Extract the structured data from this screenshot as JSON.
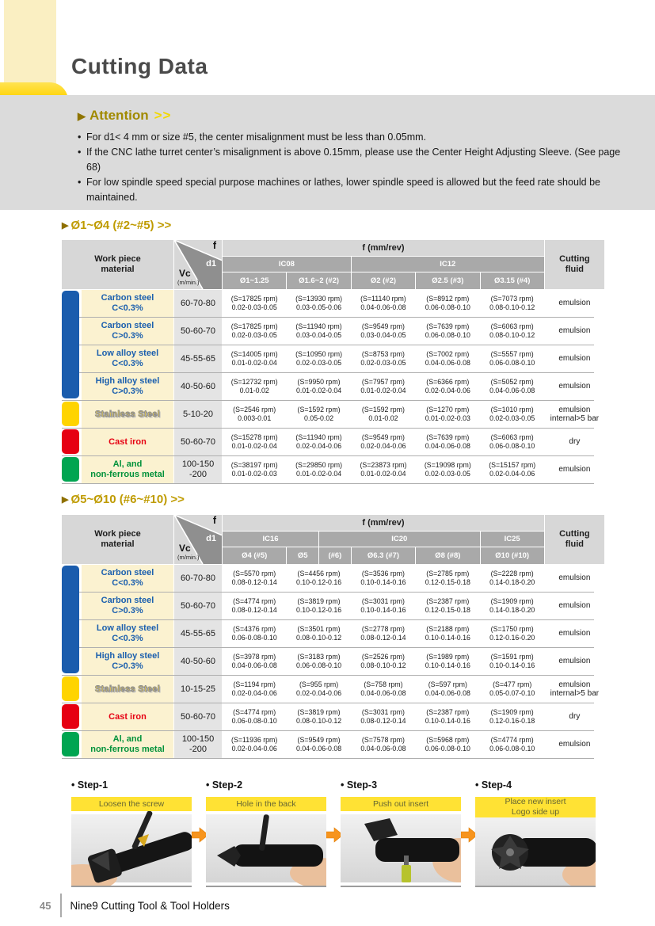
{
  "page": {
    "title": "Cutting Data",
    "footer": {
      "page_number": "45",
      "brand": "Nine9 Cutting Tool & Tool Holders"
    }
  },
  "attention": {
    "marker": "▶",
    "title": "Attention",
    "chevrons": ">>",
    "bullets": [
      "For d1< 4 mm or size #5, the center misalignment must be less than 0.05mm.",
      "If the CNC lathe turret center’s misalignment is above 0.15mm, please use the Center Height Adjusting Sleeve. (See page 68)",
      "For low spindle speed special purpose machines or lathes, lower spindle speed is allowed but the feed rate should be maintained."
    ]
  },
  "tables": [
    {
      "marker": "▶",
      "title": "Ø1~Ø4 (#2~#5) >>",
      "header": {
        "workpiece": [
          "Work piece",
          "material"
        ],
        "f": "f",
        "d1": "d1",
        "vc": "Vc",
        "vc_unit": "(m/min.)",
        "f_band": "f (mm/rev)",
        "groups": [
          "IC08",
          "IC12"
        ],
        "subcols": [
          "Ø1~1.25",
          "Ø1.6~2 (#2)",
          "Ø2 (#2)",
          "Ø2.5 (#3)",
          "Ø3.15 (#4)"
        ],
        "fluid": [
          "Cutting",
          "fluid"
        ]
      },
      "tab_groups": [
        {
          "color": "#1A5CAD",
          "from": 0,
          "to": 3
        },
        {
          "color": "#FFD400",
          "from": 4,
          "to": 4
        },
        {
          "color": "#E60012",
          "from": 5,
          "to": 5
        },
        {
          "color": "#00A551",
          "from": 6,
          "to": 6
        }
      ],
      "rows": [
        {
          "material": [
            "Carbon steel",
            "C<0.3%"
          ],
          "text_class": "blue",
          "vc": [
            "60-70-80"
          ],
          "cells": [
            {
              "rpm": "(S=17825 rpm)",
              "feed": "0.02-0.03-0.05"
            },
            {
              "rpm": "(S=13930 rpm)",
              "feed": "0.03-0.05-0.06"
            },
            {
              "rpm": "(S=11140 rpm)",
              "feed": "0.04-0.06-0.08"
            },
            {
              "rpm": "(S=8912 rpm)",
              "feed": "0.06-0.08-0.10"
            },
            {
              "rpm": "(S=7073 rpm)",
              "feed": "0.08-0.10-0.12"
            }
          ],
          "fluid": [
            "emulsion"
          ]
        },
        {
          "material": [
            "Carbon steel",
            "C>0.3%"
          ],
          "text_class": "blue",
          "vc": [
            "50-60-70"
          ],
          "cells": [
            {
              "rpm": "(S=17825 rpm)",
              "feed": "0.02-0.03-0.05"
            },
            {
              "rpm": "(S=11940 rpm)",
              "feed": "0.03-0.04-0.05"
            },
            {
              "rpm": "(S=9549 rpm)",
              "feed": "0.03-0.04-0.05"
            },
            {
              "rpm": "(S=7639 rpm)",
              "feed": "0.06-0.08-0.10"
            },
            {
              "rpm": "(S=6063 rpm)",
              "feed": "0.08-0.10-0.12"
            }
          ],
          "fluid": [
            "emulsion"
          ]
        },
        {
          "material": [
            "Low alloy steel",
            "C<0.3%"
          ],
          "text_class": "blue",
          "vc": [
            "45-55-65"
          ],
          "cells": [
            {
              "rpm": "(S=14005 rpm)",
              "feed": "0.01-0.02-0.04"
            },
            {
              "rpm": "(S=10950 rpm)",
              "feed": "0.02-0.03-0.05"
            },
            {
              "rpm": "(S=8753 rpm)",
              "feed": "0.02-0.03-0.05"
            },
            {
              "rpm": "(S=7002 rpm)",
              "feed": "0.04-0.06-0.08"
            },
            {
              "rpm": "(S=5557 rpm)",
              "feed": "0.06-0.08-0.10"
            }
          ],
          "fluid": [
            "emulsion"
          ]
        },
        {
          "material": [
            "High alloy steel",
            "C>0.3%"
          ],
          "text_class": "blue",
          "vc": [
            "40-50-60"
          ],
          "cells": [
            {
              "rpm": "(S=12732 rpm)",
              "feed": "0.01-0.02"
            },
            {
              "rpm": "(S=9950 rpm)",
              "feed": "0.01-0.02-0.04"
            },
            {
              "rpm": "(S=7957 rpm)",
              "feed": "0.01-0.02-0.04"
            },
            {
              "rpm": "(S=6366 rpm)",
              "feed": "0.02-0.04-0.06"
            },
            {
              "rpm": "(S=5052 rpm)",
              "feed": "0.04-0.06-0.08"
            }
          ],
          "fluid": [
            "emulsion"
          ]
        },
        {
          "material": [
            "Stainless Steel"
          ],
          "text_class": "stainless",
          "vc": [
            "5-10-20"
          ],
          "cells": [
            {
              "rpm": "(S=2546 rpm)",
              "feed": "0.003-0.01"
            },
            {
              "rpm": "(S=1592 rpm)",
              "feed": "0.05-0.02"
            },
            {
              "rpm": "(S=1592 rpm)",
              "feed": "0.01-0.02"
            },
            {
              "rpm": "(S=1270 rpm)",
              "feed": "0.01-0.02-0.03"
            },
            {
              "rpm": "(S=1010 rpm)",
              "feed": "0.02-0.03-0.05"
            }
          ],
          "fluid": [
            "emulsion",
            "internal>5 bar"
          ]
        },
        {
          "material": [
            "Cast  iron"
          ],
          "text_class": "red",
          "vc": [
            "50-60-70"
          ],
          "cells": [
            {
              "rpm": "(S=15278 rpm)",
              "feed": "0.01-0.02-0.04"
            },
            {
              "rpm": "(S=11940 rpm)",
              "feed": "0.02-0.04-0.06"
            },
            {
              "rpm": "(S=9549 rpm)",
              "feed": "0.02-0.04-0.06"
            },
            {
              "rpm": "(S=7639 rpm)",
              "feed": "0.04-0.06-0.08"
            },
            {
              "rpm": "(S=6063 rpm)",
              "feed": "0.06-0.08-0.10"
            }
          ],
          "fluid": [
            "dry"
          ]
        },
        {
          "material": [
            "Al, and",
            "non-ferrous metal"
          ],
          "text_class": "green",
          "vc": [
            "100-150",
            "-200"
          ],
          "cells": [
            {
              "rpm": "(S=38197 rpm)",
              "feed": "0.01-0.02-0.03"
            },
            {
              "rpm": "(S=29850 rpm)",
              "feed": "0.01-0.02-0.04"
            },
            {
              "rpm": "(S=23873 rpm)",
              "feed": "0.01-0.02-0.04"
            },
            {
              "rpm": "(S=19098 rpm)",
              "feed": "0.02-0.03-0.05"
            },
            {
              "rpm": "(S=15157 rpm)",
              "feed": "0.02-0.04-0.06"
            }
          ],
          "fluid": [
            "emulsion"
          ]
        }
      ]
    },
    {
      "marker": "▶",
      "title": "Ø5~Ø10 (#6~#10) >>",
      "header": {
        "workpiece": [
          "Work piece",
          "material"
        ],
        "f": "f",
        "d1": "d1",
        "vc": "Vc",
        "vc_unit": "(m/min.)",
        "f_band": "f (mm/rev)",
        "groups": [
          "IC16",
          "IC20",
          "IC25"
        ],
        "subcols": [
          "Ø4 (#5)",
          "Ø5",
          "(#6)",
          "Ø6.3 (#7)",
          "Ø8 (#8)",
          "Ø10 (#10)"
        ],
        "fluid": [
          "Cutting",
          "fluid"
        ]
      },
      "tab_groups": [
        {
          "color": "#1A5CAD",
          "from": 0,
          "to": 3
        },
        {
          "color": "#FFD400",
          "from": 4,
          "to": 4
        },
        {
          "color": "#E60012",
          "from": 5,
          "to": 5
        },
        {
          "color": "#00A551",
          "from": 6,
          "to": 6
        }
      ],
      "rows": [
        {
          "material": [
            "Carbon steel",
            "C<0.3%"
          ],
          "text_class": "blue",
          "vc": [
            "60-70-80"
          ],
          "cells": [
            {
              "rpm": "(S=5570 rpm)",
              "feed": "0.08-0.12-0.14"
            },
            {
              "rpm": "(S=4456 rpm)",
              "feed": "0.10-0.12-0.16"
            },
            {
              "rpm": "(S=3536 rpm)",
              "feed": "0.10-0.14-0.16"
            },
            {
              "rpm": "(S=2785 rpm)",
              "feed": "0.12-0.15-0.18"
            },
            {
              "rpm": "(S=2228 rpm)",
              "feed": "0.14-0.18-0.20"
            }
          ],
          "fluid": [
            "emulsion"
          ]
        },
        {
          "material": [
            "Carbon steel",
            "C>0.3%"
          ],
          "text_class": "blue",
          "vc": [
            "50-60-70"
          ],
          "cells": [
            {
              "rpm": "(S=4774 rpm)",
              "feed": "0.08-0.12-0.14"
            },
            {
              "rpm": "(S=3819 rpm)",
              "feed": "0.10-0.12-0.16"
            },
            {
              "rpm": "(S=3031 rpm)",
              "feed": "0.10-0.14-0.16"
            },
            {
              "rpm": "(S=2387 rpm)",
              "feed": "0.12-0.15-0.18"
            },
            {
              "rpm": "(S=1909 rpm)",
              "feed": "0.14-0.18-0.20"
            }
          ],
          "fluid": [
            "emulsion"
          ]
        },
        {
          "material": [
            "Low alloy steel",
            "C<0.3%"
          ],
          "text_class": "blue",
          "vc": [
            "45-55-65"
          ],
          "cells": [
            {
              "rpm": "(S=4376 rpm)",
              "feed": "0.06-0.08-0.10"
            },
            {
              "rpm": "(S=3501 rpm)",
              "feed": "0.08-0.10-0.12"
            },
            {
              "rpm": "(S=2778 rpm)",
              "feed": "0.08-0.12-0.14"
            },
            {
              "rpm": "(S=2188 rpm)",
              "feed": "0.10-0.14-0.16"
            },
            {
              "rpm": "(S=1750 rpm)",
              "feed": "0.12-0.16-0.20"
            }
          ],
          "fluid": [
            "emulsion"
          ]
        },
        {
          "material": [
            "High alloy steel",
            "C>0.3%"
          ],
          "text_class": "blue",
          "vc": [
            "40-50-60"
          ],
          "cells": [
            {
              "rpm": "(S=3978 rpm)",
              "feed": "0.04-0.06-0.08"
            },
            {
              "rpm": "(S=3183 rpm)",
              "feed": "0.06-0.08-0.10"
            },
            {
              "rpm": "(S=2526 rpm)",
              "feed": "0.08-0.10-0.12"
            },
            {
              "rpm": "(S=1989 rpm)",
              "feed": "0.10-0.14-0.16"
            },
            {
              "rpm": "(S=1591 rpm)",
              "feed": "0.10-0.14-0.16"
            }
          ],
          "fluid": [
            "emulsion"
          ]
        },
        {
          "material": [
            "Stainless Steel"
          ],
          "text_class": "stainless",
          "vc": [
            "10-15-25"
          ],
          "cells": [
            {
              "rpm": "(S=1194 rpm)",
              "feed": "0.02-0.04-0.06"
            },
            {
              "rpm": "(S=955 rpm)",
              "feed": "0.02-0.04-0.06"
            },
            {
              "rpm": "(S=758 rpm)",
              "feed": "0.04-0.06-0.08"
            },
            {
              "rpm": "(S=597 rpm)",
              "feed": "0.04-0.06-0.08"
            },
            {
              "rpm": "(S=477 rpm)",
              "feed": "0.05-0.07-0.10"
            }
          ],
          "fluid": [
            "emulsion",
            "internal>5 bar"
          ]
        },
        {
          "material": [
            "Cast  iron"
          ],
          "text_class": "red",
          "vc": [
            "50-60-70"
          ],
          "cells": [
            {
              "rpm": "(S=4774 rpm)",
              "feed": "0.06-0.08-0.10"
            },
            {
              "rpm": "(S=3819 rpm)",
              "feed": "0.08-0.10-0.12"
            },
            {
              "rpm": "(S=3031 rpm)",
              "feed": "0.08-0.12-0.14"
            },
            {
              "rpm": "(S=2387 rpm)",
              "feed": "0.10-0.14-0.16"
            },
            {
              "rpm": "(S=1909 rpm)",
              "feed": "0.12-0.16-0.18"
            }
          ],
          "fluid": [
            "dry"
          ]
        },
        {
          "material": [
            "Al, and",
            "non-ferrous metal"
          ],
          "text_class": "green",
          "vc": [
            "100-150",
            "-200"
          ],
          "cells": [
            {
              "rpm": "(S=11936 rpm)",
              "feed": "0.02-0.04-0.06"
            },
            {
              "rpm": "(S=9549 rpm)",
              "feed": "0.04-0.06-0.08"
            },
            {
              "rpm": "(S=7578 rpm)",
              "feed": "0.04-0.06-0.08"
            },
            {
              "rpm": "(S=5968 rpm)",
              "feed": "0.06-0.08-0.10"
            },
            {
              "rpm": "(S=4774 rpm)",
              "feed": "0.06-0.08-0.10"
            }
          ],
          "fluid": [
            "emulsion"
          ]
        }
      ]
    }
  ],
  "steps": [
    {
      "title": "• Step-1",
      "caption": [
        "Loosen the screw"
      ]
    },
    {
      "title": "• Step-2",
      "caption": [
        "Hole in the back"
      ]
    },
    {
      "title": "• Step-3",
      "caption": [
        "Push out insert"
      ]
    },
    {
      "title": "• Step-4",
      "caption": [
        "Place new insert",
        "Logo side up"
      ]
    }
  ],
  "colors": {
    "gold_title": "#BF9B00",
    "bright_yellow": "#FFD200",
    "attention_bg": "#DBDBDB",
    "header_light_gray": "#D7D7D7",
    "header_band_gray": "#A9A9A9",
    "wedge_gray": "#8F8F8F",
    "cream_cell": "#FBF2D0",
    "vc_cell": "#E4E4E4",
    "tab_blue": "#1A5CAD",
    "tab_yellow": "#FFD400",
    "tab_red": "#E60012",
    "tab_green": "#00A551",
    "step_caption_bg": "#FFE234",
    "arrow_orange": "#F7941D"
  }
}
